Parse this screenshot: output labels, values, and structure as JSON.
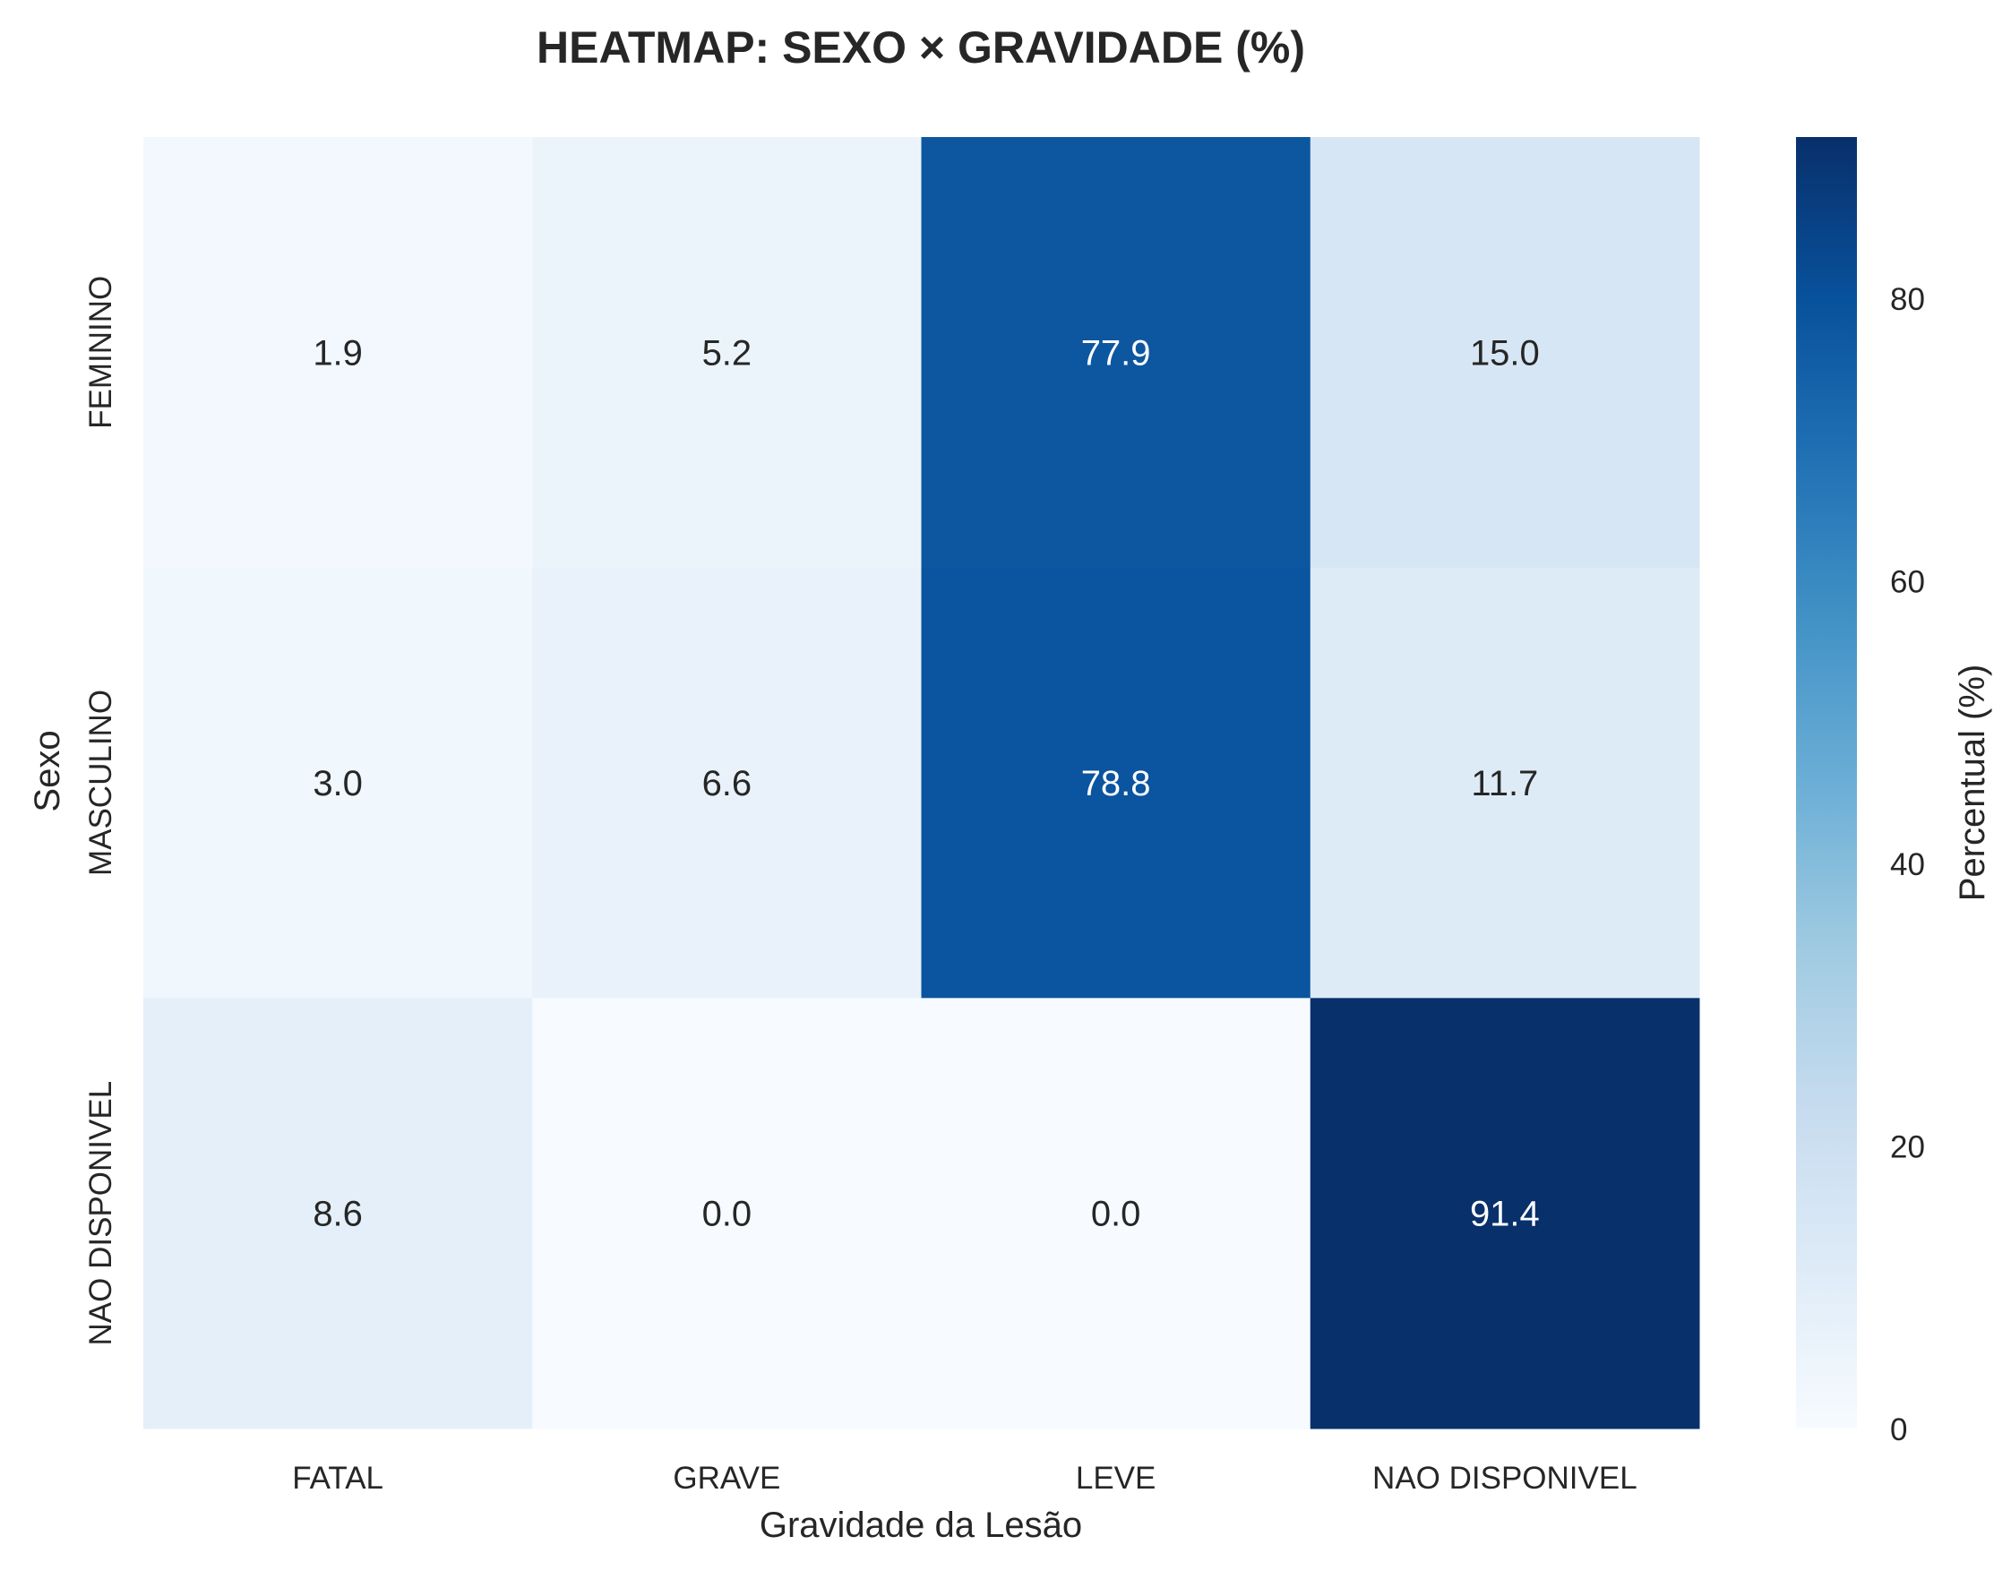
{
  "chart_data": {
    "type": "heatmap",
    "title": "HEATMAP: SEXO × GRAVIDADE (%)",
    "xlabel": "Gravidade da Lesão",
    "ylabel": "Sexo",
    "x_categories": [
      "FATAL",
      "GRAVE",
      "LEVE",
      "NAO DISPONIVEL"
    ],
    "y_categories": [
      "FEMININO",
      "MASCULINO",
      "NAO DISPONIVEL"
    ],
    "values": [
      [
        1.9,
        5.2,
        77.9,
        15.0
      ],
      [
        3.0,
        6.6,
        78.8,
        11.7
      ],
      [
        8.6,
        0.0,
        0.0,
        91.4
      ]
    ],
    "value_format": "0.0",
    "colormap": "Blues",
    "color_range": [
      0,
      91.4
    ],
    "colorbar": {
      "label": "Percentual (%)",
      "ticks": [
        0,
        20,
        40,
        60,
        80
      ]
    },
    "grid": false
  }
}
